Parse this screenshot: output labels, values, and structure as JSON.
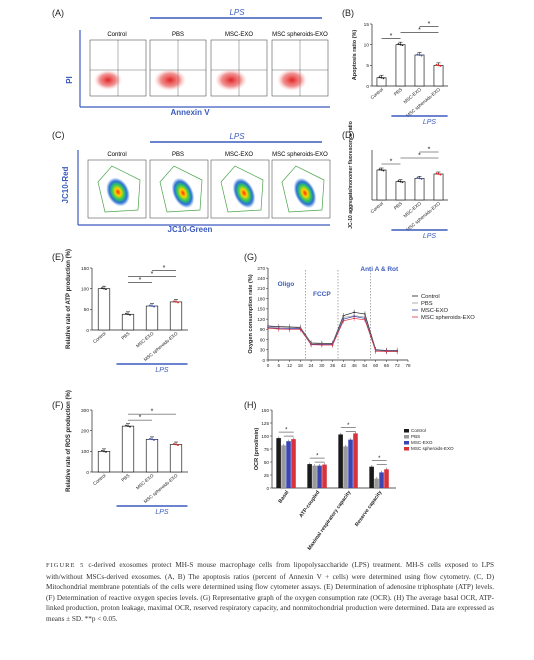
{
  "panels": {
    "A": {
      "letter": "(A)",
      "treatment": "LPS",
      "groups": [
        "Control",
        "PBS",
        "MSC-EXO",
        "MSC spheroids-EXO"
      ],
      "y_axis": "PI",
      "x_axis": "Annexin V"
    },
    "B": {
      "letter": "(B)",
      "treatment": "LPS",
      "chart_data": {
        "type": "bar",
        "categories": [
          "Control",
          "PBS",
          "MSC-EXO",
          "MSC spheroids-EXO"
        ],
        "values": [
          2,
          10,
          7.5,
          5
        ],
        "ylabel": "Apoptosis ratio (%)",
        "ylim": [
          0,
          15
        ],
        "yticks": [
          0,
          5,
          10,
          15
        ]
      }
    },
    "C": {
      "letter": "(C)",
      "treatment": "LPS",
      "groups": [
        "Control",
        "PBS",
        "MSC-EXO",
        "MSC spheroids-EXO"
      ],
      "y_axis": "JC10-Red",
      "x_axis": "JC10-Green"
    },
    "D": {
      "letter": "(D)",
      "treatment": "LPS",
      "chart_data": {
        "type": "bar",
        "categories": [
          "Control",
          "PBS",
          "MSC-EXO",
          "MSC spheroids-EXO"
        ],
        "values": [
          0.9,
          0.55,
          0.65,
          0.78
        ],
        "ylabel": "JC-10 aggregate/monomer fluorescence ratio",
        "ylim": [
          0,
          1.5
        ]
      }
    },
    "E": {
      "letter": "(E)",
      "treatment": "LPS",
      "chart_data": {
        "type": "bar",
        "categories": [
          "Control",
          "PBS",
          "MSC-EXO",
          "MSC spheroids-EXO"
        ],
        "values": [
          100,
          38,
          58,
          68
        ],
        "ylabel": "Relative rate of ATP production (%)",
        "ylim": [
          0,
          150
        ],
        "yticks": [
          0,
          50,
          100,
          150
        ]
      }
    },
    "F": {
      "letter": "(F)",
      "treatment": "LPS",
      "chart_data": {
        "type": "bar",
        "categories": [
          "Control",
          "PBS",
          "MSC-EXO",
          "MSC spheroids-EXO"
        ],
        "values": [
          100,
          222,
          158,
          133
        ],
        "ylabel": "Relative rate of ROS production (%)",
        "ylim": [
          0,
          300
        ],
        "yticks": [
          0,
          100,
          200,
          300
        ]
      }
    },
    "G": {
      "letter": "(G)",
      "chart_data": {
        "type": "line",
        "ylabel": "Oxygen consumption rate (%)",
        "ylim": [
          0,
          270
        ],
        "yticks": [
          0,
          30,
          60,
          90,
          120,
          150,
          180,
          210,
          240,
          270
        ],
        "xlim": [
          0,
          78
        ],
        "xticks": [
          0,
          6,
          12,
          18,
          24,
          30,
          36,
          42,
          48,
          54,
          60,
          66,
          72,
          78
        ],
        "x": [
          0,
          6,
          12,
          18,
          24,
          30,
          36,
          42,
          48,
          54,
          60,
          66,
          72
        ],
        "series": [
          {
            "name": "Control",
            "values": [
              100,
              98,
              97,
              96,
              50,
              49,
              49,
              130,
              140,
              135,
              30,
              28,
              28
            ]
          },
          {
            "name": "PBS",
            "values": [
              98,
              96,
              95,
              94,
              48,
              47,
              47,
              125,
              130,
              126,
              28,
              27,
              27
            ]
          },
          {
            "name": "MSC-EXO",
            "values": [
              95,
              93,
              92,
              92,
              46,
              46,
              46,
              120,
              128,
              122,
              27,
              26,
              26
            ]
          },
          {
            "name": "MSC spheroids-EXO",
            "values": [
              93,
              91,
              90,
              90,
              45,
              44,
              44,
              115,
              122,
              118,
              26,
              25,
              25
            ]
          }
        ],
        "annotations": [
          "Oligo",
          "FCCP",
          "Anti A & Rot"
        ]
      }
    },
    "H": {
      "letter": "(H)",
      "chart_data": {
        "type": "bar",
        "categories": [
          "Basal",
          "ATP-coupled",
          "Maximal respiratory capacity",
          "Reserve capacity"
        ],
        "ylabel": "OCR (pmol/min)",
        "ylim": [
          0,
          150
        ],
        "yticks": [
          0,
          25,
          50,
          75,
          100,
          125,
          150
        ],
        "series": [
          {
            "name": "Control",
            "values": [
              96,
              46,
              103,
              41
            ]
          },
          {
            "name": "PBS",
            "values": [
              82,
              43,
              80,
              18
            ]
          },
          {
            "name": "MSC-EXO",
            "values": [
              90,
              43,
              93,
              30
            ]
          },
          {
            "name": "MSC spheroids-EXO",
            "values": [
              94,
              45,
              105,
              36
            ]
          }
        ],
        "colors": [
          "#1a1a1a",
          "#9a9a9a",
          "#3b46b5",
          "#d8323c"
        ]
      }
    }
  },
  "caption": {
    "label": "FIGURE 5",
    "text": "c-derived exosomes protect MH-S mouse macrophage cells from lipopolysaccharide (LPS) treatment. MH-S cells exposed to LPS with/without MSCs-derived exosomes. (A, B) The apoptosis ratios (percent of Annexin V + cells) were determined using flow cytometry. (C, D) Mitochondrial membrane potentials of the cells were determined using flow cytometer assays. (E) Determination of adenosine triphosphate (ATP) levels. (F) Determination of reactive oxygen species levels. (G) Representative graph of the oxygen consumption rate (OCR). (H) The average basal OCR, ATP-linked production, proton leakage, maximal OCR, reserved respiratory capacity, and nonmitochondrial production were determined. Data are expressed as means ± SD. **p < 0.05."
  },
  "colors": {
    "accent_blue": "#3b5bbf",
    "bar_blue": "#3b46b5",
    "bar_red": "#d8323c",
    "dot_red": "#d22",
    "dot_blue": "#3a56c0"
  }
}
